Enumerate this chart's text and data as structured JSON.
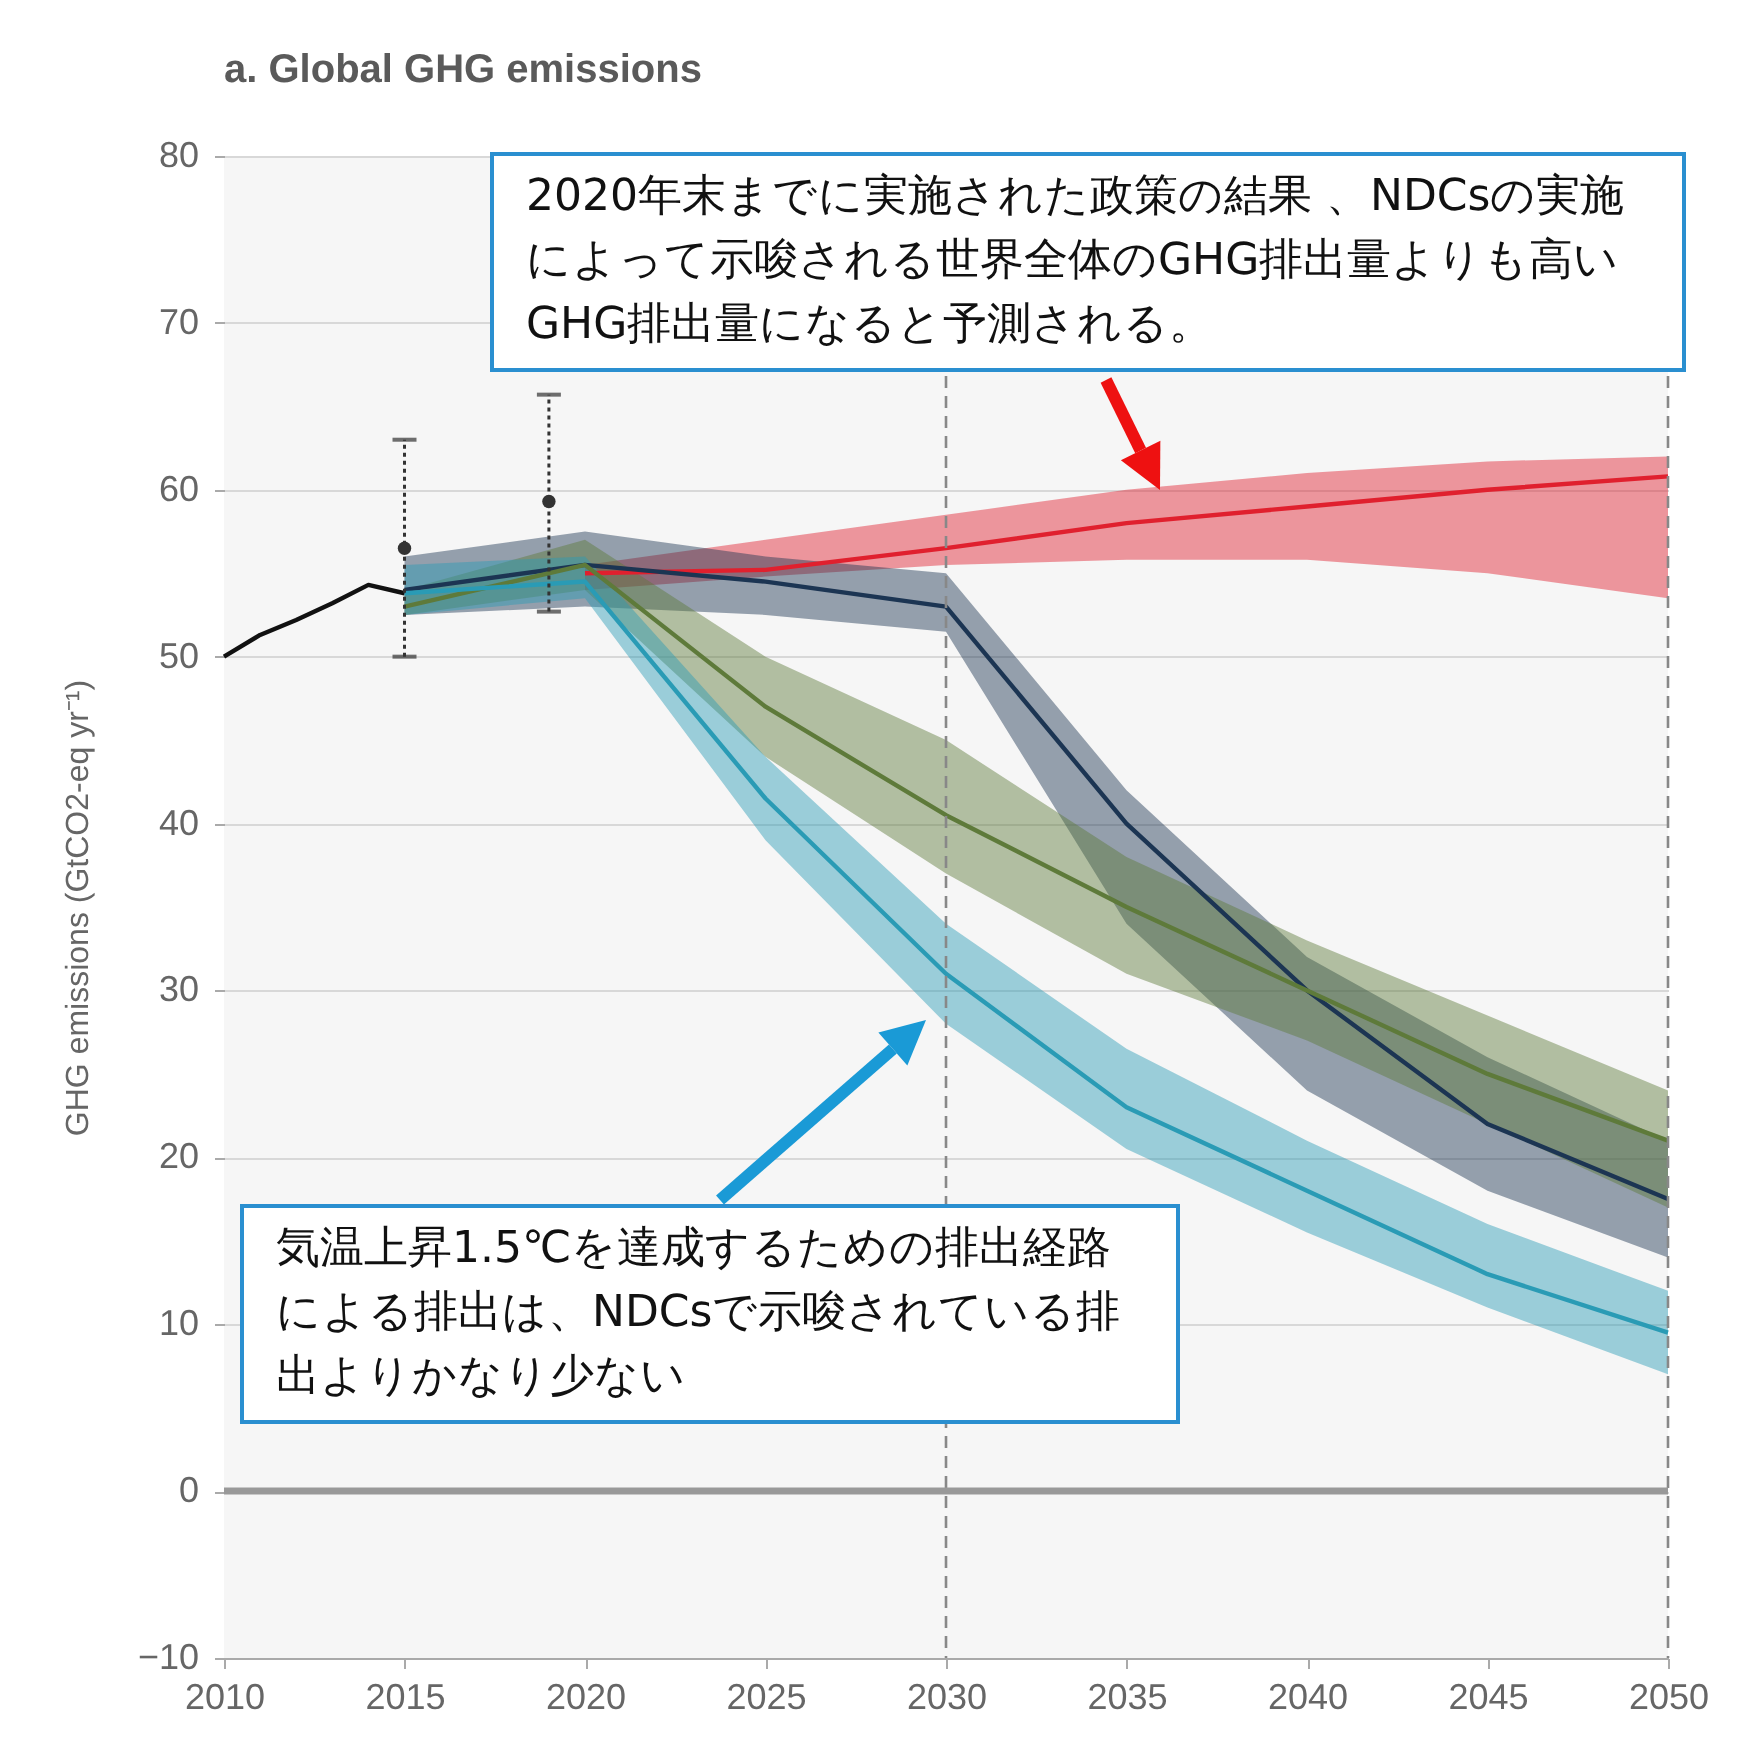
{
  "chart_data": {
    "type": "line",
    "title": "a. Global GHG emissions",
    "ylabel": "GHG emissions (GtCO2-eq yr⁻¹)",
    "xlim": [
      2010,
      2050
    ],
    "xticks": [
      2010,
      2015,
      2020,
      2025,
      2030,
      2035,
      2040,
      2045,
      2050
    ],
    "ylim": [
      -10,
      80
    ],
    "yticks": [
      -10,
      0,
      10,
      20,
      30,
      40,
      50,
      60,
      70,
      80
    ],
    "grid": "y",
    "series": [
      {
        "color": "#e0202e",
        "x": [
          2020,
          2025,
          2030,
          2035,
          2040,
          2045,
          2050
        ],
        "values": [
          55,
          55.2,
          56.5,
          58,
          59,
          60,
          60.8
        ],
        "lower": [
          54,
          54.8,
          55.5,
          55.8,
          55.8,
          55,
          53.5
        ],
        "upper": [
          55.5,
          57,
          58.5,
          60,
          61,
          61.7,
          62
        ]
      },
      {
        "color": "#1c3553",
        "x": [
          2015,
          2020,
          2025,
          2030,
          2035,
          2040,
          2045,
          2050
        ],
        "values": [
          54,
          55.5,
          54.5,
          53,
          40,
          30,
          22,
          17.5
        ],
        "lower": [
          52.5,
          53,
          52.5,
          51.5,
          34,
          24,
          18,
          14
        ],
        "upper": [
          56,
          57.5,
          56,
          55,
          42,
          32,
          26,
          21
        ]
      },
      {
        "color": "#5e7a3a",
        "x": [
          2015,
          2020,
          2025,
          2030,
          2035,
          2040,
          2045,
          2050
        ],
        "values": [
          53,
          55.5,
          47,
          40.5,
          35,
          30,
          25,
          21
        ],
        "lower": [
          52.5,
          54,
          44,
          37,
          31,
          27,
          22,
          17
        ],
        "upper": [
          54,
          57,
          50,
          45,
          38,
          33,
          28.5,
          24
        ]
      },
      {
        "color": "#2a9bb5",
        "x": [
          2015,
          2020,
          2025,
          2030,
          2035,
          2040,
          2045,
          2050
        ],
        "values": [
          53.8,
          54.5,
          41.5,
          31,
          23,
          18,
          13,
          9.5
        ],
        "lower": [
          52.5,
          53.5,
          39,
          28,
          20.5,
          15.5,
          11,
          7
        ],
        "upper": [
          55.5,
          56,
          44,
          34,
          26.5,
          21,
          16,
          12
        ]
      },
      {
        "color": "#111111",
        "x": [
          2010,
          2011,
          2012,
          2013,
          2014,
          2015
        ],
        "values": [
          50,
          51.3,
          52.2,
          53.2,
          54.3,
          53.8
        ]
      },
      {
        "type": "scatter",
        "color": "#333333",
        "x": [
          2015,
          2019
        ],
        "values": [
          56.5,
          59.3
        ],
        "errors": [
          [
            50,
            63
          ],
          [
            52.7,
            65.7
          ]
        ]
      }
    ],
    "ref_lines": [
      {
        "axis": "x",
        "value": 2030,
        "line_style": "dashed",
        "color": "#888888"
      },
      {
        "axis": "x",
        "value": 2050,
        "line_style": "dashed",
        "color": "#888888"
      },
      {
        "axis": "y",
        "value": 0,
        "line_style": "solid",
        "color": "#999999"
      }
    ],
    "annotations": [
      "2020年末までに実施された政策の結果 、NDCsの実施によって示唆される世界全体のGHG排出量よりも高いGHG排出量になると予測される。",
      "気温上昇1.5℃を達成するための排出経路による排出は、NDCsで示唆されている排出よりかなり少ない"
    ]
  }
}
